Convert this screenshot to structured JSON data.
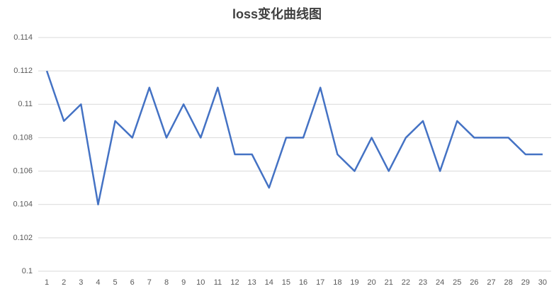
{
  "chart_data": {
    "type": "line",
    "title": "loss变化曲线图",
    "categories": [
      "1",
      "2",
      "3",
      "4",
      "5",
      "6",
      "7",
      "8",
      "9",
      "10",
      "11",
      "12",
      "13",
      "14",
      "15",
      "16",
      "17",
      "18",
      "19",
      "20",
      "21",
      "22",
      "23",
      "24",
      "25",
      "26",
      "27",
      "28",
      "29",
      "30"
    ],
    "series": [
      {
        "name": "loss",
        "color": "#4472c4",
        "values": [
          0.112,
          0.109,
          0.11,
          0.104,
          0.109,
          0.108,
          0.111,
          0.108,
          0.11,
          0.108,
          0.111,
          0.107,
          0.107,
          0.105,
          0.108,
          0.108,
          0.111,
          0.107,
          0.106,
          0.108,
          0.106,
          0.108,
          0.109,
          0.106,
          0.109,
          0.108,
          0.108,
          0.108,
          0.107,
          0.107
        ]
      }
    ],
    "ylim": [
      0.1,
      0.114
    ],
    "yticks": [
      0.1,
      0.102,
      0.104,
      0.106,
      0.108,
      0.11,
      0.112,
      0.114
    ],
    "grid": true
  }
}
